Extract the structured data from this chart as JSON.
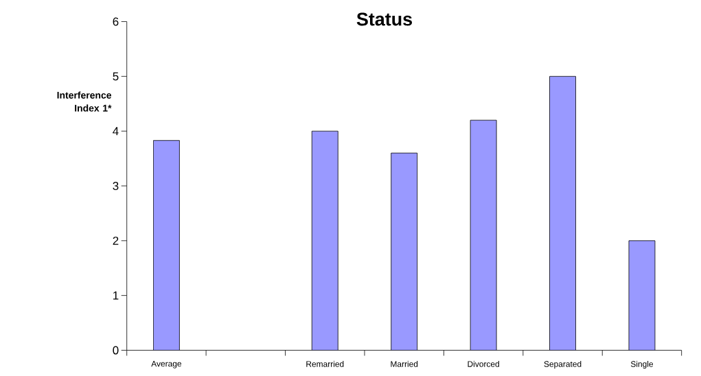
{
  "chart_data": {
    "type": "bar",
    "title": "Status",
    "ylabel": "Interference Index 1*",
    "categories": [
      "Average",
      null,
      "Remarried",
      "Married",
      "Divorced",
      "Separated",
      "Single"
    ],
    "values": [
      3.83,
      null,
      4.0,
      3.6,
      4.2,
      5.0,
      2.0
    ],
    "color": "#9999ff",
    "ylim": [
      0,
      6
    ],
    "yticks": [
      0,
      1,
      2,
      3,
      4,
      5,
      6
    ]
  }
}
